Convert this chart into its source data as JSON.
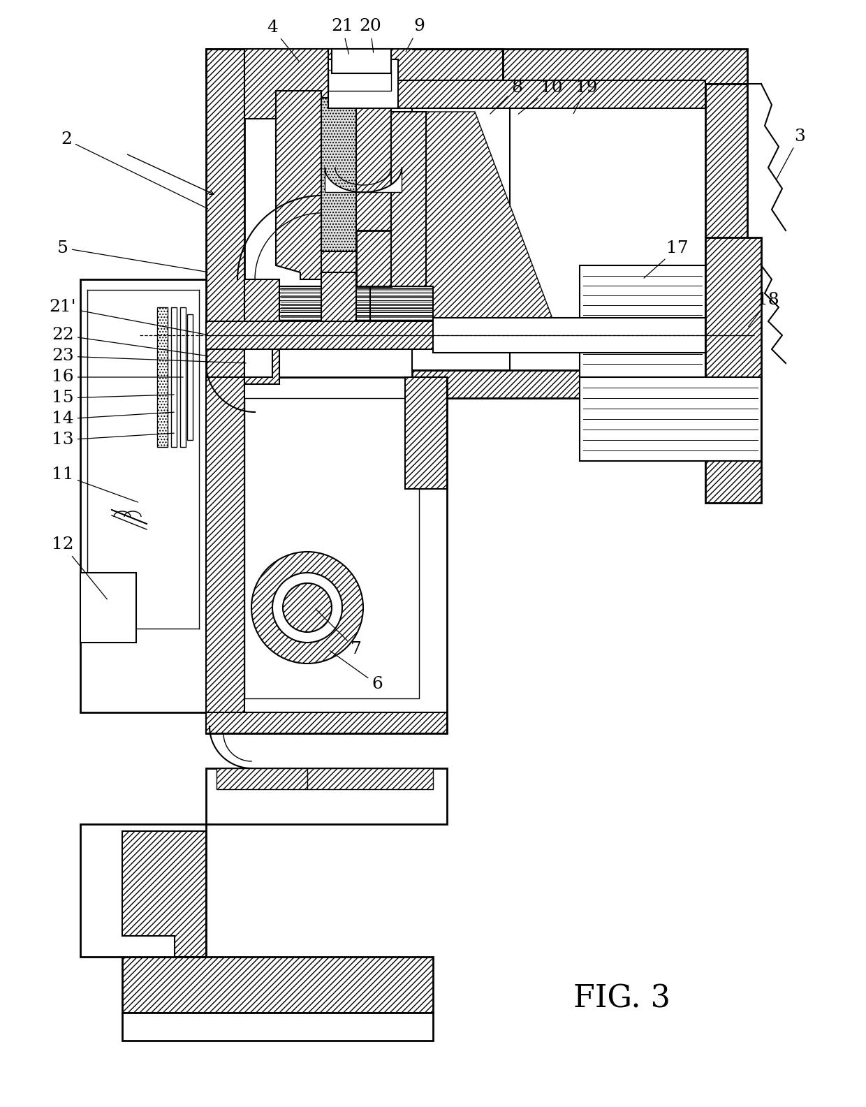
{
  "title": "FIG. 3",
  "background_color": "#ffffff",
  "fig_width": 12.4,
  "fig_height": 15.85,
  "dpi": 100
}
